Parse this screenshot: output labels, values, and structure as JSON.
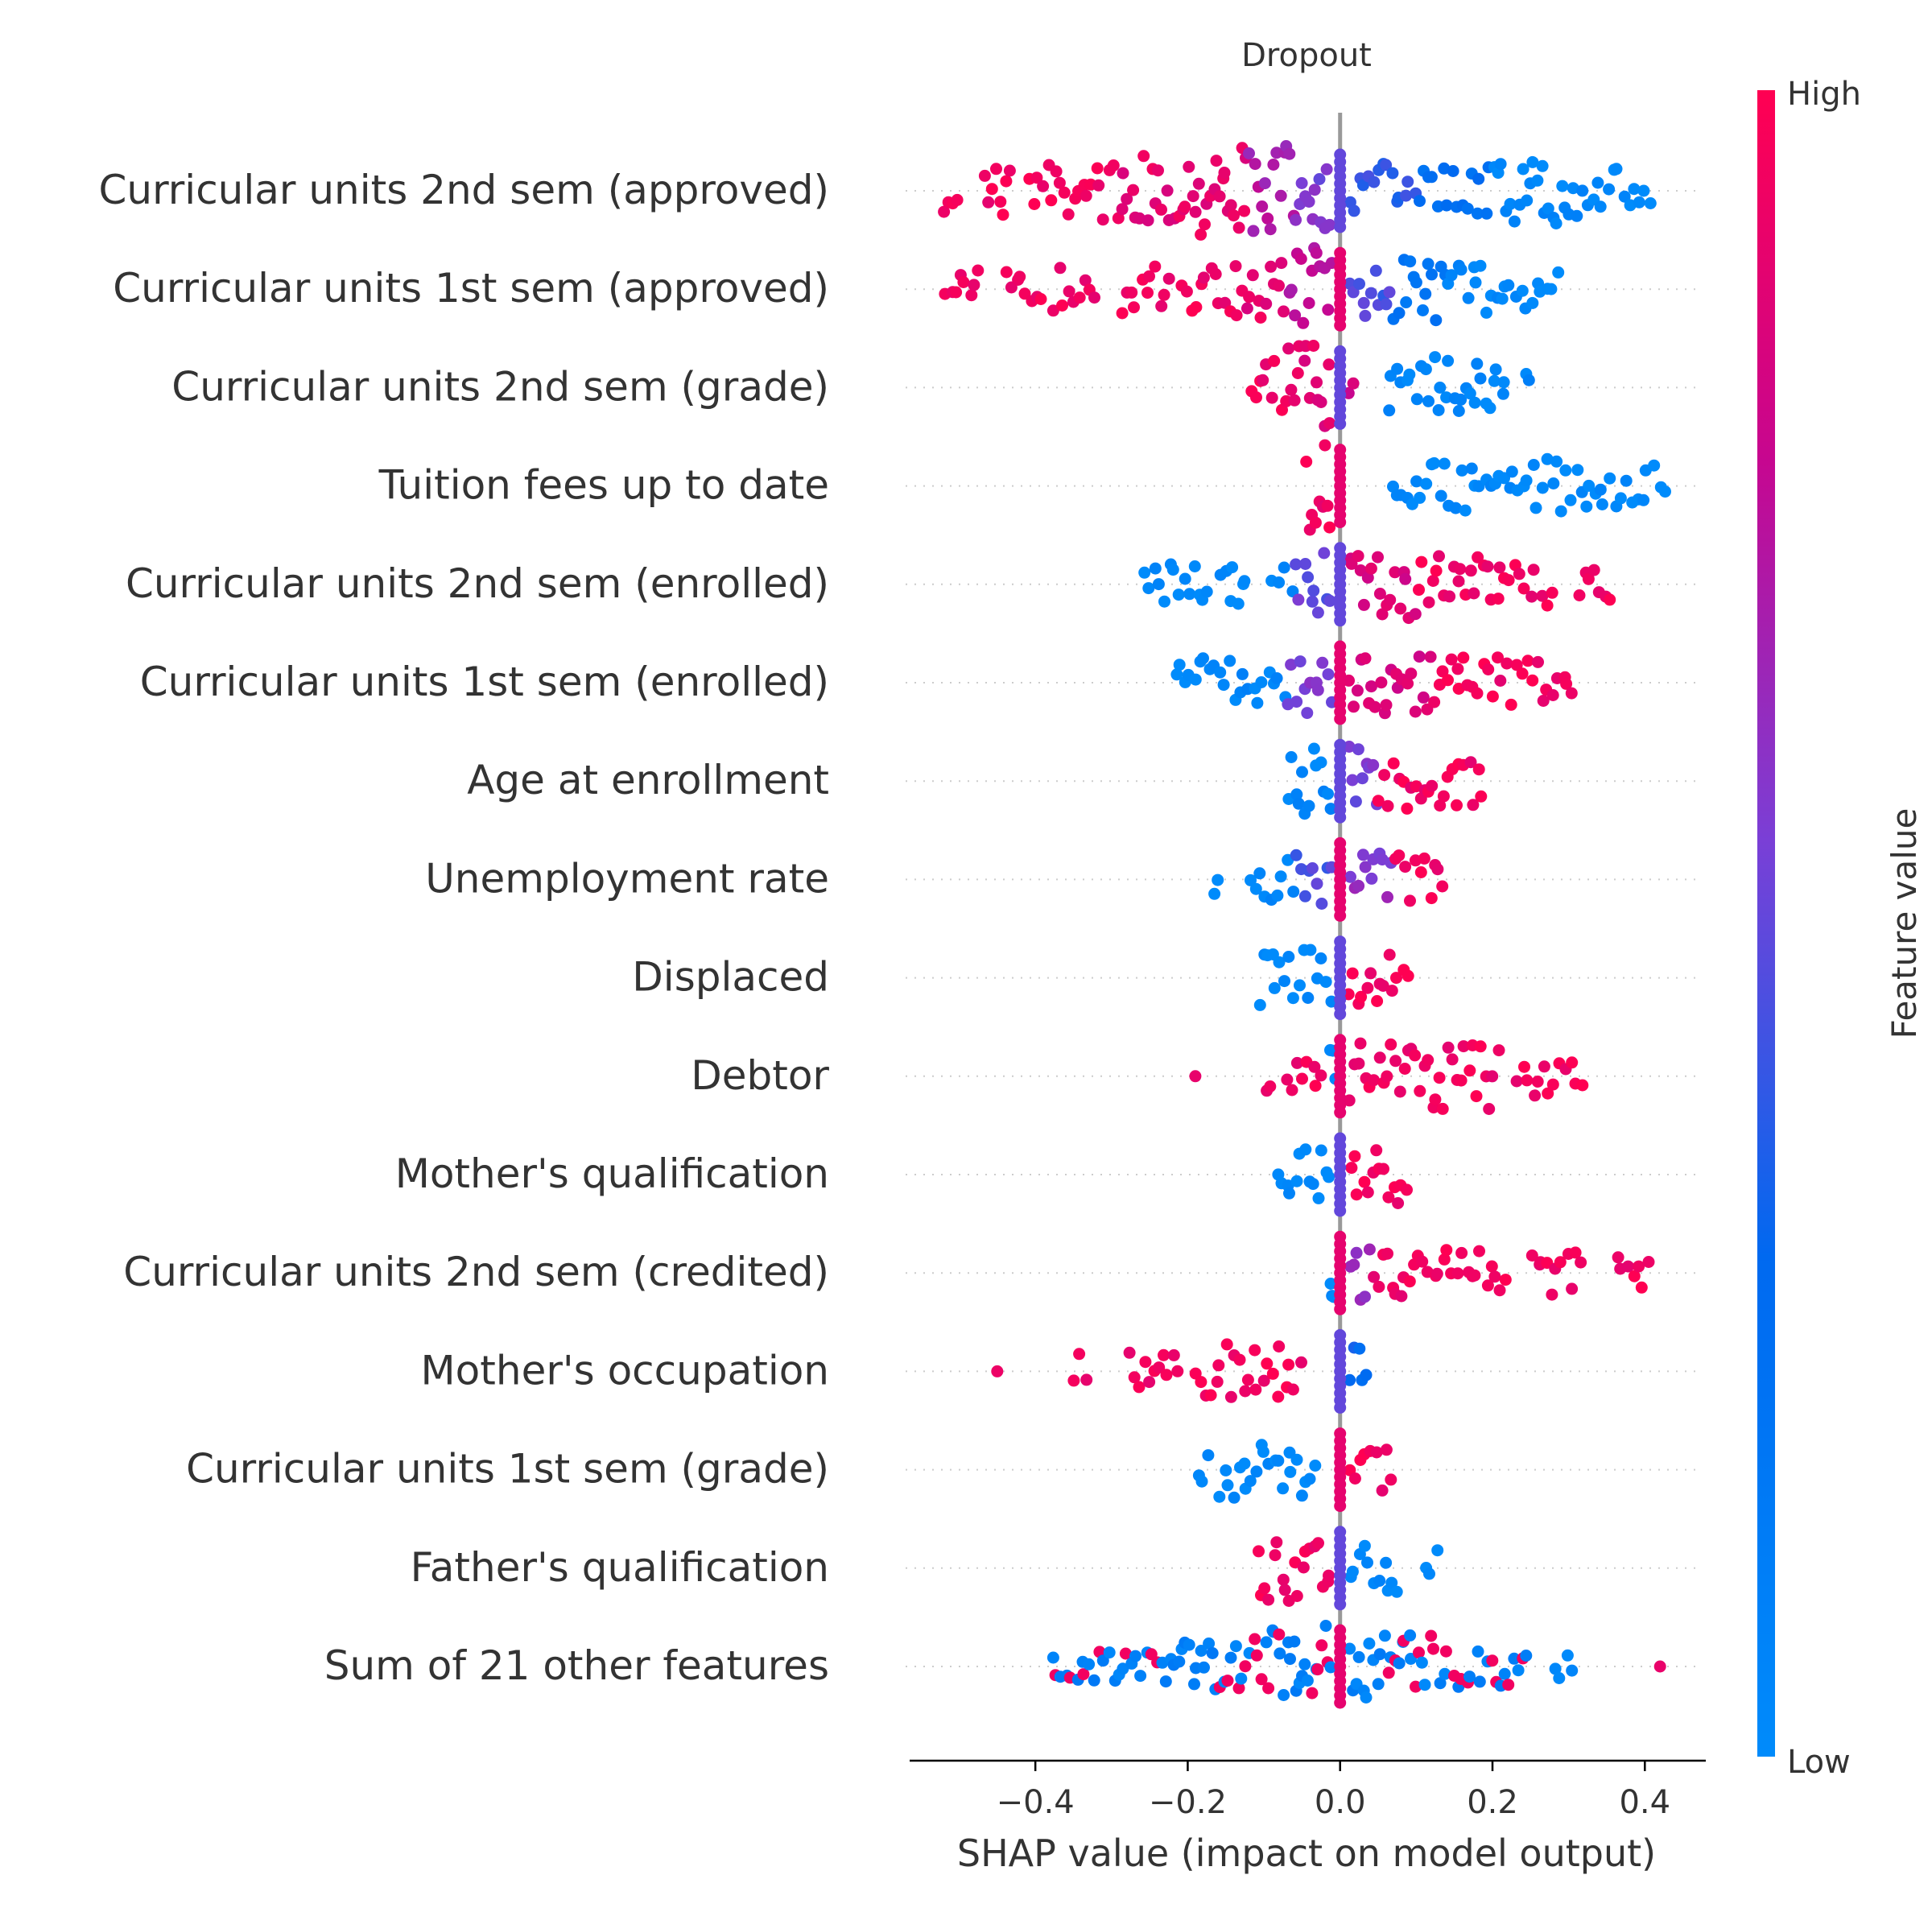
{
  "chart_data": {
    "type": "scatter",
    "title": "Dropout",
    "xlabel": "SHAP value (impact on model output)",
    "ylabel": "",
    "xlim": [
      -0.565,
      0.48
    ],
    "xticks": [
      -0.4,
      -0.2,
      0.0,
      0.2,
      0.4
    ],
    "xtick_labels": [
      "−0.4",
      "−0.2",
      "0.0",
      "0.2",
      "0.4"
    ],
    "grid": false,
    "colorbar": {
      "label": "Feature value",
      "high_label": "High",
      "low_label": "Low",
      "high_color": "#ff0052",
      "low_color": "#008bfb"
    },
    "features": [
      {
        "name": "Curricular units 2nd sem (approved)",
        "clusters": [
          [
            -0.52,
            -0.5,
            0.95,
            0.5,
            0
          ],
          [
            -0.47,
            -0.43,
            0.95,
            0.6,
            0
          ],
          [
            -0.41,
            -0.3,
            0.95,
            0.6,
            0
          ],
          [
            -0.3,
            -0.2,
            0.9,
            0.75,
            0
          ],
          [
            -0.2,
            -0.12,
            0.9,
            1.0,
            0
          ],
          [
            -0.12,
            -0.06,
            0.7,
            1.0,
            0
          ],
          [
            -0.06,
            -0.01,
            0.55,
            0.9,
            0
          ],
          [
            0.01,
            0.1,
            0.4,
            0.55,
            0
          ],
          [
            0.1,
            0.2,
            0.25,
            0.5,
            0
          ],
          [
            0.2,
            0.32,
            0.05,
            0.7,
            0
          ],
          [
            0.32,
            0.41,
            0.02,
            0.45,
            0
          ]
        ]
      },
      {
        "name": "Curricular units 1st sem (approved)",
        "clusters": [
          [
            -0.52,
            -0.47,
            0.95,
            0.4,
            0
          ],
          [
            -0.44,
            -0.39,
            0.95,
            0.4,
            0
          ],
          [
            -0.38,
            -0.32,
            0.95,
            0.45,
            0
          ],
          [
            -0.29,
            -0.22,
            0.95,
            0.5,
            0
          ],
          [
            -0.21,
            -0.13,
            0.95,
            0.55,
            0
          ],
          [
            -0.13,
            -0.07,
            0.9,
            0.7,
            0
          ],
          [
            -0.07,
            -0.01,
            0.75,
            0.9,
            0
          ],
          [
            0.01,
            0.07,
            0.45,
            0.6,
            0
          ],
          [
            0.07,
            0.14,
            0.2,
            0.7,
            0
          ],
          [
            0.14,
            0.22,
            0.05,
            0.5,
            0
          ],
          [
            0.22,
            0.29,
            0.02,
            0.4,
            0
          ]
        ]
      },
      {
        "name": "Curricular units 2nd sem (grade)",
        "clusters": [
          [
            -0.12,
            -0.07,
            0.95,
            0.6,
            0
          ],
          [
            -0.07,
            -0.01,
            0.9,
            1.0,
            0
          ],
          [
            0.01,
            0.02,
            0.8,
            0.5,
            0
          ],
          [
            0.06,
            0.12,
            0.05,
            0.5,
            0
          ],
          [
            0.12,
            0.22,
            0.05,
            0.7,
            0
          ],
          [
            0.24,
            0.25,
            0.05,
            0.3,
            0
          ]
        ]
      },
      {
        "name": "Tuition fees up to date",
        "clusters": [
          [
            -0.045,
            -0.01,
            0.95,
            1.0,
            0
          ],
          [
            0.065,
            0.2,
            0.02,
            0.5,
            0
          ],
          [
            0.2,
            0.35,
            0.02,
            0.55,
            0
          ],
          [
            0.35,
            0.43,
            0.02,
            0.4,
            0
          ]
        ]
      },
      {
        "name": "Curricular units 2nd sem (enrolled)",
        "clusters": [
          [
            -0.26,
            -0.17,
            0.02,
            0.5,
            0
          ],
          [
            -0.16,
            -0.12,
            0.02,
            0.45,
            0
          ],
          [
            -0.09,
            -0.06,
            0.02,
            0.3,
            0
          ],
          [
            -0.06,
            -0.01,
            0.5,
            0.7,
            0
          ],
          [
            0.01,
            0.1,
            0.85,
            0.75,
            0
          ],
          [
            0.1,
            0.22,
            0.95,
            0.6,
            0
          ],
          [
            0.22,
            0.28,
            0.95,
            0.45,
            0
          ],
          [
            0.31,
            0.36,
            0.95,
            0.3,
            0
          ]
        ]
      },
      {
        "name": "Curricular units 1st sem (enrolled)",
        "clusters": [
          [
            -0.22,
            -0.13,
            0.02,
            0.5,
            0
          ],
          [
            -0.13,
            -0.07,
            0.05,
            0.45,
            0
          ],
          [
            -0.07,
            -0.01,
            0.55,
            0.7,
            0
          ],
          [
            0.01,
            0.12,
            0.85,
            0.75,
            0
          ],
          [
            0.12,
            0.22,
            0.95,
            0.55,
            0
          ],
          [
            0.22,
            0.31,
            0.95,
            0.45,
            0
          ]
        ]
      },
      {
        "name": "Age at enrollment",
        "clusters": [
          [
            -0.07,
            -0.01,
            0.05,
            0.8,
            0
          ],
          [
            0.01,
            0.05,
            0.55,
            0.8,
            0
          ],
          [
            0.05,
            0.19,
            0.95,
            0.6,
            0
          ]
        ]
      },
      {
        "name": "Unemployment rate",
        "clusters": [
          [
            -0.165,
            -0.16,
            0.02,
            0.3,
            0
          ],
          [
            -0.12,
            -0.06,
            0.05,
            0.45,
            0
          ],
          [
            -0.06,
            -0.01,
            0.45,
            0.55,
            0
          ],
          [
            0.01,
            0.07,
            0.6,
            0.6,
            0
          ],
          [
            0.07,
            0.14,
            0.95,
            0.5,
            0
          ]
        ]
      },
      {
        "name": "Displaced",
        "clusters": [
          [
            -0.11,
            -0.01,
            0.02,
            0.6,
            0
          ],
          [
            0.01,
            0.09,
            0.95,
            0.6,
            0
          ]
        ]
      },
      {
        "name": "Debtor",
        "clusters": [
          [
            -0.19,
            -0.19,
            0.95,
            0.3,
            0
          ],
          [
            -0.1,
            -0.09,
            0.95,
            0.3,
            0
          ],
          [
            -0.07,
            -0.02,
            0.95,
            0.4,
            0
          ],
          [
            -0.015,
            -0.005,
            0.02,
            0.8,
            0
          ],
          [
            0.01,
            0.21,
            0.95,
            0.7,
            0
          ],
          [
            0.23,
            0.32,
            0.95,
            0.45,
            0
          ]
        ]
      },
      {
        "name": "Mother's qualification",
        "clusters": [
          [
            -0.085,
            -0.01,
            0.02,
            0.55,
            0
          ],
          [
            0.01,
            0.09,
            0.95,
            0.6,
            0
          ]
        ]
      },
      {
        "name": "Curricular units 2nd sem (credited)",
        "clusters": [
          [
            -0.015,
            -0.005,
            0.02,
            0.6,
            0
          ],
          [
            0.01,
            0.04,
            0.6,
            0.6,
            0
          ],
          [
            0.04,
            0.12,
            0.95,
            0.55,
            0
          ],
          [
            0.12,
            0.22,
            0.95,
            0.5,
            0
          ],
          [
            0.25,
            0.32,
            0.95,
            0.45,
            0
          ],
          [
            0.36,
            0.41,
            0.95,
            0.3,
            0
          ]
        ]
      },
      {
        "name": "Mother's occupation",
        "clusters": [
          [
            -0.45,
            -0.45,
            0.95,
            0.3,
            0
          ],
          [
            -0.35,
            -0.33,
            0.95,
            0.35,
            0
          ],
          [
            -0.28,
            -0.21,
            0.95,
            0.5,
            0
          ],
          [
            -0.19,
            -0.05,
            0.95,
            0.55,
            0
          ],
          [
            0.01,
            0.04,
            0.3,
            0.5,
            0
          ]
        ]
      },
      {
        "name": "Curricular units 1st sem (grade)",
        "clusters": [
          [
            -0.19,
            -0.17,
            0.02,
            0.35,
            0
          ],
          [
            -0.16,
            -0.03,
            0.02,
            0.6,
            0
          ],
          [
            0.01,
            0.07,
            0.95,
            0.45,
            0
          ]
        ]
      },
      {
        "name": "Father's qualification",
        "clusters": [
          [
            -0.11,
            -0.01,
            0.95,
            0.7,
            0
          ],
          [
            0.01,
            0.08,
            0.02,
            0.5,
            0
          ],
          [
            0.11,
            0.13,
            0.02,
            0.35,
            0
          ]
        ]
      },
      {
        "name": "Sum of 21 other features",
        "clusters": [
          [
            -0.38,
            -0.22,
            0.3,
            0.55,
            1
          ],
          [
            -0.22,
            -0.1,
            0.3,
            0.75,
            1
          ],
          [
            -0.1,
            -0.01,
            0.4,
            1.0,
            1
          ],
          [
            0.01,
            0.12,
            0.2,
            0.85,
            1
          ],
          [
            0.12,
            0.25,
            0.2,
            0.55,
            1
          ],
          [
            0.28,
            0.31,
            0.02,
            0.3,
            0
          ],
          [
            0.42,
            0.42,
            0.95,
            0.3,
            0
          ]
        ]
      }
    ]
  }
}
